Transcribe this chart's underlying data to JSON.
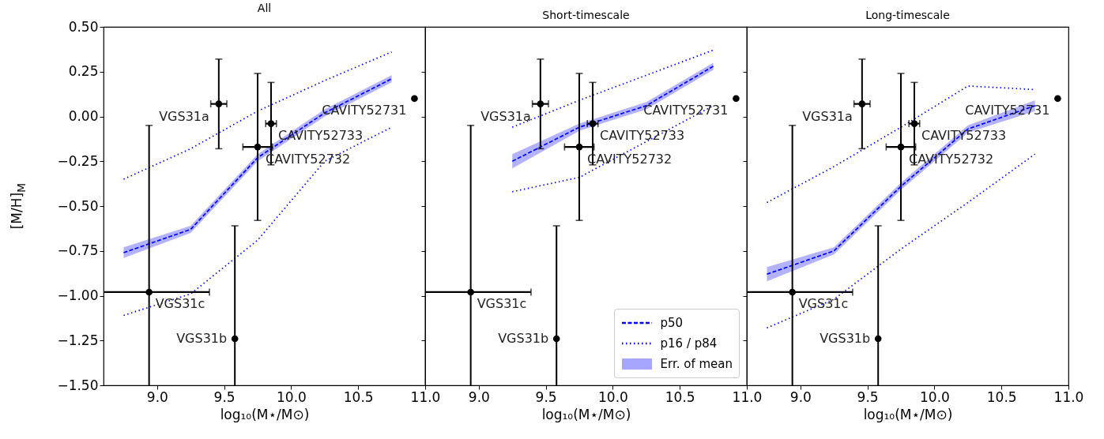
{
  "chart_data": [
    {
      "type": "line",
      "title": "All",
      "xlabel": "log₁₀(M⋆/M⊙)",
      "ylabel": "[M/H]$_{M}$",
      "xlim": [
        8.6,
        11.0
      ],
      "ylim": [
        -1.5,
        0.5
      ],
      "xticks": [
        {
          "value": 9,
          "label": "9.0"
        },
        {
          "value": 9.5,
          "label": "9.5"
        },
        {
          "value": 10,
          "label": "10.0"
        },
        {
          "value": 10.5,
          "label": "10.5"
        },
        {
          "value": 11,
          "label": "11.0"
        }
      ],
      "yticks": [
        {
          "value": -1.5,
          "label": "−1.50"
        },
        {
          "value": -1.25,
          "label": "−1.25"
        },
        {
          "value": -1,
          "label": "−1.00"
        },
        {
          "value": -0.75,
          "label": "−0.75"
        },
        {
          "value": -0.5,
          "label": "−0.50"
        },
        {
          "value": -0.25,
          "label": "−0.25"
        },
        {
          "value": 0,
          "label": "0.00"
        },
        {
          "value": 0.25,
          "label": "0.25"
        },
        {
          "value": 0.5,
          "label": "0.50"
        }
      ],
      "series": [
        {
          "type": "line",
          "line_style": "dashed",
          "color": "#0000ff",
          "x": [
            8.75,
            9.25,
            9.75,
            10.25,
            10.75
          ],
          "values": [
            -0.76,
            -0.63,
            -0.23,
            0.02,
            0.21
          ],
          "lower": [
            -0.79,
            -0.65,
            -0.25,
            0.0,
            0.19
          ],
          "upper": [
            -0.73,
            -0.61,
            -0.21,
            0.04,
            0.23
          ]
        },
        {
          "type": "line",
          "line_style": "dotted",
          "color": "#0000ff",
          "x": [
            8.75,
            9.25,
            9.75,
            10.25,
            10.75
          ],
          "values": [
            -1.11,
            -0.99,
            -0.69,
            -0.25,
            -0.06
          ]
        },
        {
          "type": "line",
          "line_style": "dotted",
          "color": "#0000ff",
          "x": [
            8.75,
            9.25,
            9.75,
            10.25,
            10.75
          ],
          "values": [
            -0.35,
            -0.18,
            0.03,
            0.2,
            0.36
          ]
        },
        {
          "type": "scatter",
          "marker": "circle",
          "color": "#000000",
          "x": [
            9.46,
            9.58,
            8.94,
            10.92,
            9.75,
            9.85
          ],
          "values": [
            0.07,
            -1.24,
            -0.98,
            0.1,
            -0.17,
            -0.04
          ],
          "errors": [
            [
              -0.18,
              0.32
            ],
            [
              -1.5,
              -0.61
            ],
            [
              -1.5,
              -0.05
            ],
            null,
            [
              -0.58,
              0.24
            ],
            [
              -0.27,
              0.19
            ]
          ],
          "xerrors": [
            [
              9.4,
              9.52
            ],
            null,
            [
              8.6,
              9.39
            ],
            null,
            [
              9.64,
              9.86
            ],
            [
              9.81,
              9.89
            ]
          ]
        }
      ],
      "annotations": [
        {
          "text": "VGS31a",
          "x": 9.46,
          "y": 0.07
        },
        {
          "text": "VGS31b",
          "x": 9.58,
          "y": -1.24
        },
        {
          "text": "VGS31c",
          "x": 8.94,
          "y": -0.98
        },
        {
          "text": "CAVITY52731",
          "x": 10.92,
          "y": 0.1
        },
        {
          "text": "CAVITY52732",
          "x": 9.75,
          "y": -0.17
        },
        {
          "text": "CAVITY52733",
          "x": 9.85,
          "y": -0.04
        }
      ]
    },
    {
      "type": "line",
      "title": "Short-timescale",
      "xlabel": "log₁₀(M⋆/M⊙)",
      "xlim": [
        8.6,
        11.0
      ],
      "ylim": [
        -1.5,
        0.5
      ],
      "tick_labels": "x",
      "legend": "bottom right",
      "xticks": [
        {
          "value": 9,
          "label": "9.0"
        },
        {
          "value": 9.5,
          "label": "9.5"
        },
        {
          "value": 10,
          "label": "10.0"
        },
        {
          "value": 10.5,
          "label": "10.5"
        },
        {
          "value": 11,
          "label": "11.0"
        }
      ],
      "yticks": [
        -1.5,
        -1.25,
        -1,
        -0.75,
        -0.5,
        -0.25,
        0,
        0.25,
        0.5
      ],
      "series": [
        {
          "name": "p50",
          "type": "line",
          "line_style": "dashed",
          "color": "#0000ff",
          "x": [
            9.25,
            9.75,
            10.25,
            10.75
          ],
          "values": [
            -0.25,
            -0.06,
            0.06,
            0.28
          ],
          "lower": [
            -0.29,
            -0.08,
            0.04,
            0.26
          ],
          "upper": [
            -0.21,
            -0.04,
            0.08,
            0.3
          ]
        },
        {
          "name": "p16 / p84",
          "type": "line",
          "line_style": "dotted",
          "color": "#0000ff",
          "x": [
            9.25,
            9.75,
            10.25,
            10.75
          ],
          "values": [
            -0.42,
            -0.34,
            -0.14,
            0.06
          ]
        },
        {
          "type": "line",
          "line_style": "dotted",
          "color": "#0000ff",
          "x": [
            9.25,
            9.75,
            10.25,
            10.75
          ],
          "values": [
            -0.06,
            0.09,
            0.23,
            0.37
          ]
        },
        {
          "type": "scatter",
          "marker": "circle",
          "color": "#000000",
          "x": [
            9.46,
            9.58,
            8.94,
            10.92,
            9.75,
            9.85
          ],
          "values": [
            0.07,
            -1.24,
            -0.98,
            0.1,
            -0.17,
            -0.04
          ],
          "errors": [
            [
              -0.18,
              0.32
            ],
            [
              -1.5,
              -0.61
            ],
            [
              -1.5,
              -0.05
            ],
            null,
            [
              -0.58,
              0.24
            ],
            [
              -0.27,
              0.19
            ]
          ],
          "xerrors": [
            [
              9.4,
              9.52
            ],
            null,
            [
              8.6,
              9.39
            ],
            null,
            [
              9.64,
              9.86
            ],
            [
              9.81,
              9.89
            ]
          ]
        }
      ],
      "annotations": [
        {
          "text": "VGS31a",
          "x": 9.46,
          "y": 0.07
        },
        {
          "text": "VGS31b",
          "x": 9.58,
          "y": -1.24
        },
        {
          "text": "VGS31c",
          "x": 8.94,
          "y": -0.98
        },
        {
          "text": "CAVITY52731",
          "x": 10.92,
          "y": 0.1
        },
        {
          "text": "CAVITY52732",
          "x": 9.75,
          "y": -0.17
        },
        {
          "text": "CAVITY52733",
          "x": 9.85,
          "y": -0.04
        },
        "Err. of mean"
      ]
    },
    {
      "type": "line",
      "title": "Long-timescale",
      "xlabel": "log₁₀(M⋆/M⊙)",
      "xlim": [
        8.6,
        11.0
      ],
      "ylim": [
        -1.5,
        0.5
      ],
      "tick_labels": "x",
      "xticks": [
        {
          "value": 9,
          "label": "9.0"
        },
        {
          "value": 9.5,
          "label": "9.5"
        },
        {
          "value": 10,
          "label": "10.0"
        },
        {
          "value": 10.5,
          "label": "10.5"
        },
        {
          "value": 11,
          "label": "11.0"
        }
      ],
      "yticks": [
        -1.5,
        -1.25,
        -1,
        -0.75,
        -0.5,
        -0.25,
        0,
        0.25,
        0.5
      ],
      "series": [
        {
          "type": "line",
          "line_style": "dashed",
          "color": "#0000ff",
          "x": [
            8.75,
            9.25,
            9.75,
            10.25,
            10.75
          ],
          "values": [
            -0.88,
            -0.75,
            -0.39,
            -0.07,
            0.06
          ],
          "lower": [
            -0.92,
            -0.77,
            -0.41,
            -0.09,
            0.03
          ],
          "upper": [
            -0.84,
            -0.73,
            -0.37,
            -0.05,
            0.09
          ]
        },
        {
          "type": "line",
          "line_style": "dotted",
          "color": "#0000ff",
          "x": [
            8.75,
            9.25,
            9.75,
            10.25,
            10.75
          ],
          "values": [
            -1.18,
            -1.02,
            -0.74,
            -0.48,
            -0.21
          ]
        },
        {
          "type": "line",
          "line_style": "dotted",
          "color": "#0000ff",
          "x": [
            8.75,
            9.25,
            9.75,
            10.25,
            10.75
          ],
          "values": [
            -0.48,
            -0.28,
            -0.06,
            0.17,
            0.15
          ]
        },
        {
          "type": "scatter",
          "marker": "circle",
          "color": "#000000",
          "x": [
            9.46,
            9.58,
            8.94,
            10.92,
            9.75,
            9.85
          ],
          "values": [
            0.07,
            -1.24,
            -0.98,
            0.1,
            -0.17,
            -0.04
          ],
          "errors": [
            [
              -0.18,
              0.32
            ],
            [
              -1.5,
              -0.61
            ],
            [
              -1.5,
              -0.05
            ],
            null,
            [
              -0.58,
              0.24
            ],
            [
              -0.27,
              0.19
            ]
          ],
          "xerrors": [
            [
              9.4,
              9.52
            ],
            null,
            [
              8.6,
              9.39
            ],
            null,
            [
              9.64,
              9.86
            ],
            [
              9.81,
              9.89
            ]
          ]
        }
      ],
      "annotations": [
        {
          "text": "VGS31a",
          "x": 9.46,
          "y": 0.07
        },
        {
          "text": "VGS31b",
          "x": 9.58,
          "y": -1.24
        },
        {
          "text": "VGS31c",
          "x": 8.94,
          "y": -0.98
        },
        {
          "text": "CAVITY52731",
          "x": 10.92,
          "y": 0.1
        },
        {
          "text": "CAVITY52732",
          "x": 9.75,
          "y": -0.17
        },
        {
          "text": "CAVITY52733",
          "x": 9.85,
          "y": -0.04
        }
      ]
    }
  ]
}
